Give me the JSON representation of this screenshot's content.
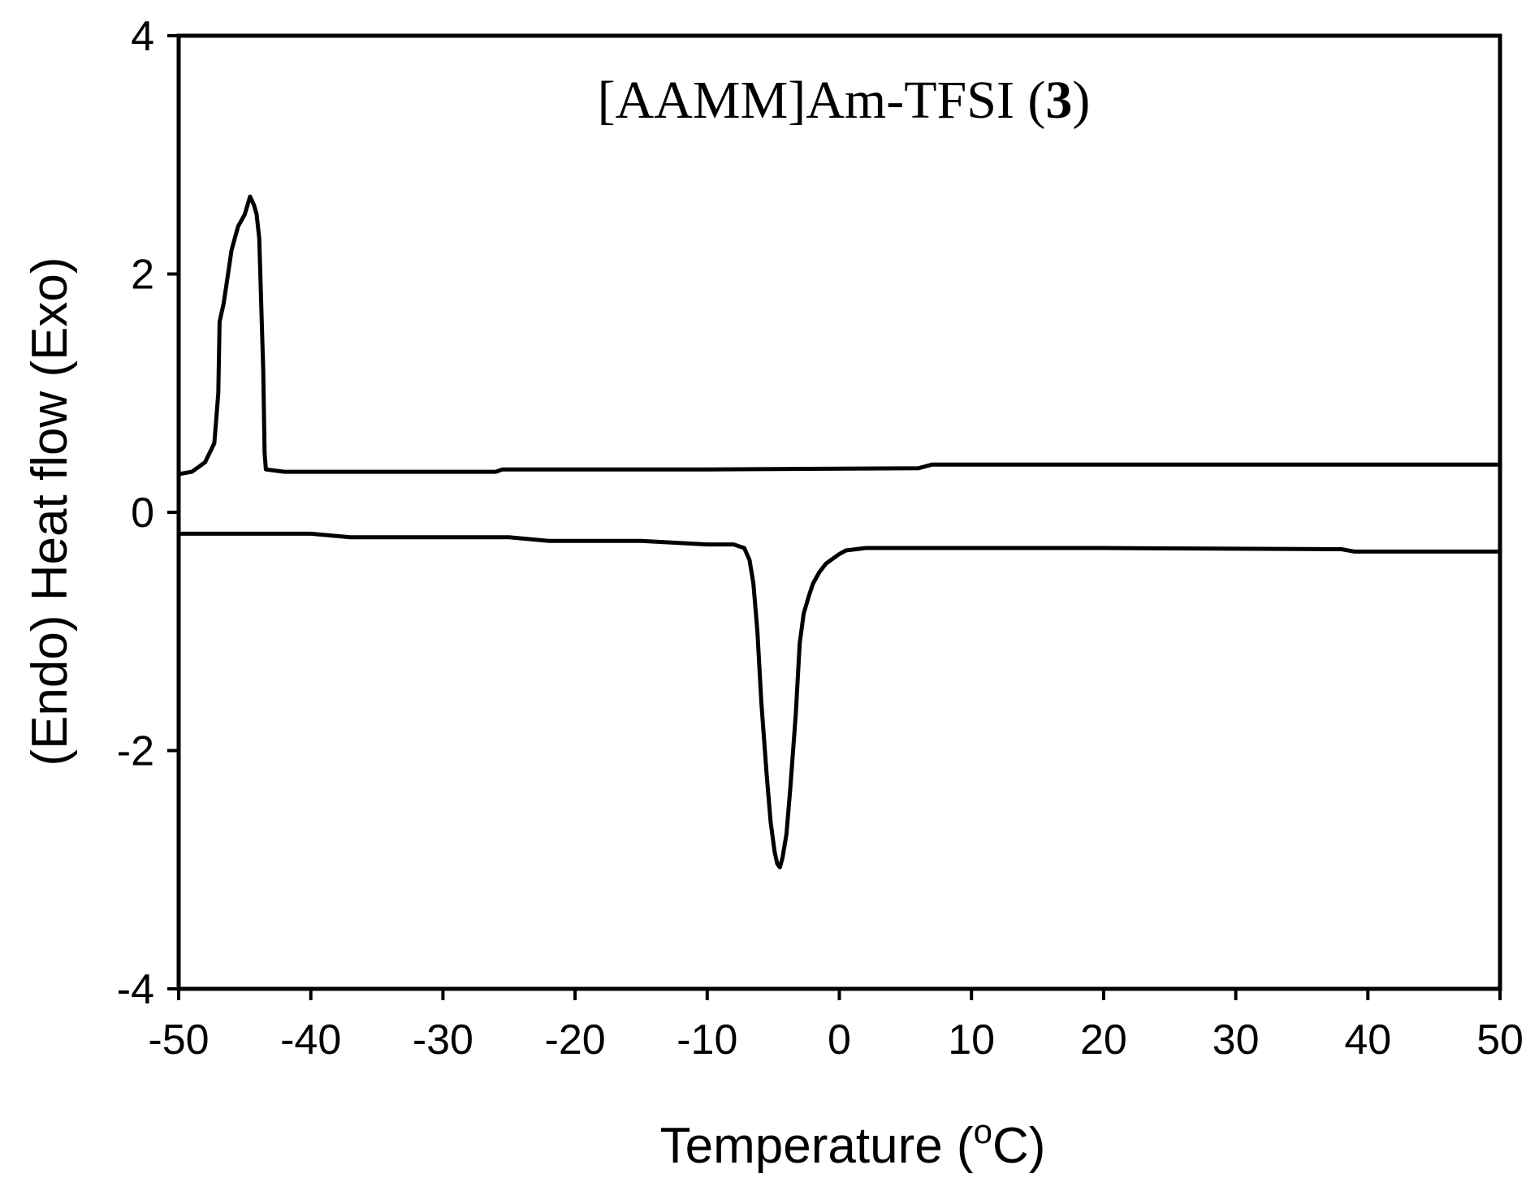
{
  "chart_data": {
    "type": "line",
    "title": {
      "prefix": "[AAMM]Am-TFSI (",
      "bold": "3",
      "suffix": ")"
    },
    "xlabel": {
      "prefix": "Temperature (",
      "superscript": "o",
      "suffix": "C)"
    },
    "ylabel": "(Endo) Heat flow (Exo)",
    "xlim": [
      -50,
      50
    ],
    "ylim": [
      -4,
      4
    ],
    "xticks": [
      -50,
      -40,
      -30,
      -20,
      -10,
      0,
      10,
      20,
      30,
      40,
      50
    ],
    "yticks": [
      -4,
      -2,
      0,
      2,
      4
    ],
    "xtick_labels": [
      "-50",
      "-40",
      "-30",
      "-20",
      "-10",
      "0",
      "10",
      "20",
      "30",
      "40",
      "50"
    ],
    "ytick_labels": [
      "-4",
      "-2",
      "0",
      "2",
      "4"
    ],
    "grid": false,
    "legend": "none",
    "series": [
      {
        "x": [
          -50,
          -49,
          -48,
          -47.3,
          -47,
          -46.9,
          -46.6,
          -46.4,
          -46,
          -45.5,
          -45,
          -44.6,
          -44.3,
          -44.1,
          -43.9,
          -43.6,
          -43.5,
          -43.4,
          -42,
          -35,
          -26,
          -25.5,
          -10,
          6,
          7,
          20,
          35,
          50
        ],
        "y": [
          0.32,
          0.34,
          0.42,
          0.58,
          1.0,
          1.6,
          1.75,
          1.9,
          2.2,
          2.4,
          2.5,
          2.65,
          2.58,
          2.5,
          2.3,
          1.2,
          0.5,
          0.36,
          0.34,
          0.34,
          0.34,
          0.36,
          0.36,
          0.37,
          0.4,
          0.4,
          0.4,
          0.4
        ]
      },
      {
        "x": [
          -50,
          -40,
          -37,
          -25,
          -22,
          -15,
          -10,
          -8,
          -7.2,
          -6.8,
          -6.5,
          -6.2,
          -5.9,
          -5.5,
          -5.2,
          -4.9,
          -4.7,
          -4.5,
          -4.3,
          -4.0,
          -3.7,
          -3.3,
          -3.0,
          -2.7,
          -2.3,
          -2.0,
          -1.5,
          -1.0,
          0,
          0.5,
          2,
          20,
          38,
          39,
          50
        ],
        "y": [
          -0.18,
          -0.18,
          -0.21,
          -0.21,
          -0.24,
          -0.24,
          -0.27,
          -0.27,
          -0.3,
          -0.4,
          -0.6,
          -1.0,
          -1.6,
          -2.2,
          -2.6,
          -2.85,
          -2.95,
          -2.98,
          -2.9,
          -2.7,
          -2.3,
          -1.7,
          -1.1,
          -0.85,
          -0.7,
          -0.6,
          -0.5,
          -0.43,
          -0.35,
          -0.32,
          -0.3,
          -0.3,
          -0.31,
          -0.33,
          -0.33
        ]
      }
    ]
  }
}
